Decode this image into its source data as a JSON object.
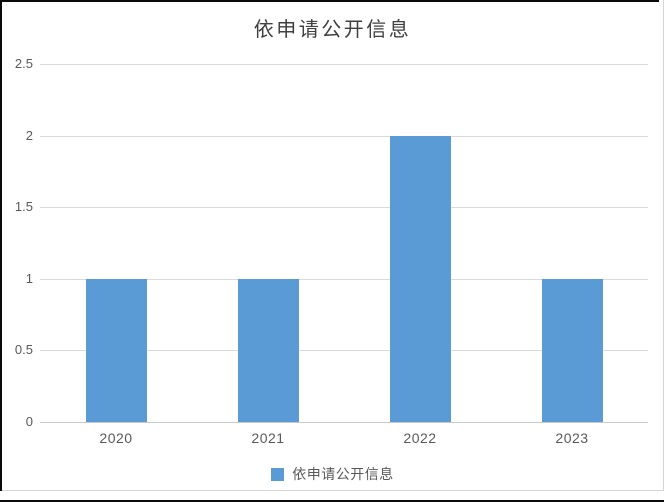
{
  "window": {
    "background": "#ffffff",
    "outer_border_color": "#0a0a0a",
    "frame_border_color": "#d6d6d6"
  },
  "chart_data": {
    "type": "bar",
    "title": "依申请公开信息",
    "categories": [
      "2020",
      "2021",
      "2022",
      "2023"
    ],
    "series": [
      {
        "name": "依申请公开信息",
        "values": [
          1,
          1,
          2,
          1
        ]
      }
    ],
    "xlabel": "",
    "ylabel": "",
    "ylim": [
      0,
      2.5
    ],
    "yticks": [
      "0",
      "0.5",
      "1",
      "1.5",
      "2",
      "2.5"
    ],
    "grid": true,
    "gridline_color": "#d9d9d9",
    "axis_line_color": "#c9c9c9",
    "bar_color": "#5B9BD5",
    "title_color": "#404040",
    "tick_label_color": "#595959",
    "legend": {
      "position": "bottom",
      "label": "依申请公开信息",
      "swatch_color": "#5B9BD5"
    }
  }
}
